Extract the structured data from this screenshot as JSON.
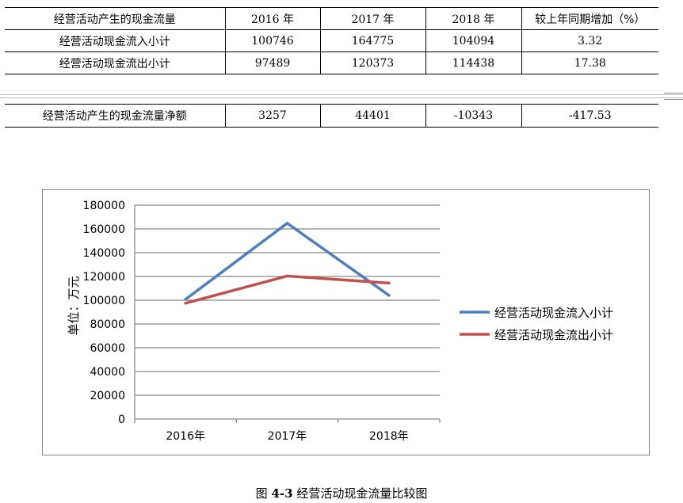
{
  "table": {
    "headers": [
      "经营活动产生的现金流量",
      "2016 年",
      "2017 年",
      "2018 年",
      "较上年同期增加（%）"
    ],
    "rows": [
      [
        "经营活动现金流入小计",
        "100746",
        "164775",
        "104094",
        "3.32"
      ],
      [
        "经营活动现金流出小计",
        "97489",
        "120373",
        "114438",
        "17.38"
      ]
    ],
    "net_row": [
      "经营活动产生的现金流量净额",
      "3257",
      "44401",
      "-10343",
      "-417.53"
    ]
  },
  "chart_data": {
    "type": "line",
    "categories": [
      "2016年",
      "2017年",
      "2018年"
    ],
    "series": [
      {
        "name": "经营活动现金流入小计",
        "values": [
          100746,
          164775,
          104094
        ],
        "color": "#4f7fbd"
      },
      {
        "name": "经营活动现金流出小计",
        "values": [
          97489,
          120373,
          114438
        ],
        "color": "#c0504d"
      }
    ],
    "ylabel": "单位：万元",
    "ylim": [
      0,
      180000
    ],
    "yticks": [
      0,
      20000,
      40000,
      60000,
      80000,
      100000,
      120000,
      140000,
      160000,
      180000
    ],
    "grid": true,
    "legend": "right"
  },
  "caption": {
    "prefix": "图 ",
    "number": "4-3",
    "title": "  经营活动现金流量比较图"
  }
}
